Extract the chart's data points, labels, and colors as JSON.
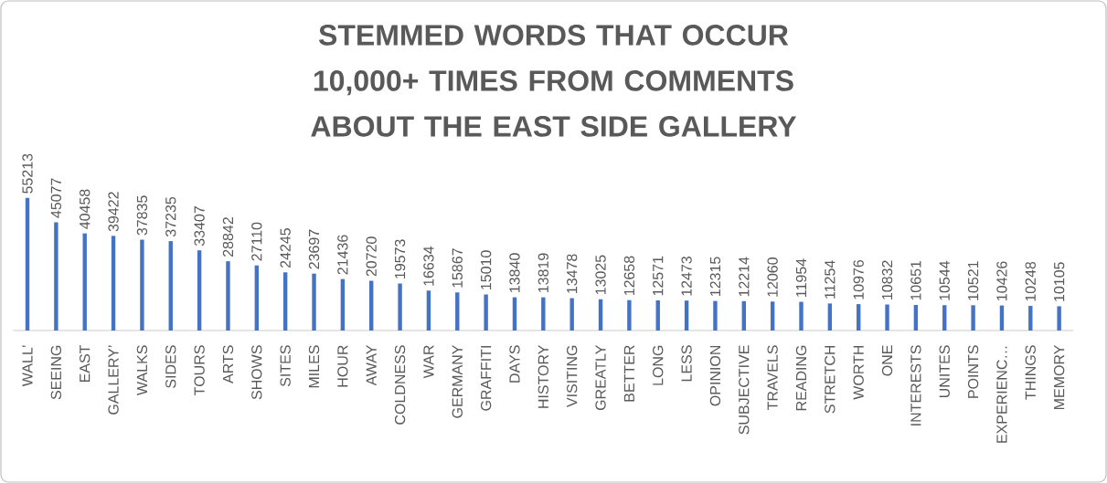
{
  "chart_data": {
    "type": "bar",
    "title": "STEMMED WORDS THAT OCCUR 10,000+ TIMES FROM COMMENTS ABOUT THE EAST SIDE GALLERY",
    "categories": [
      "WALL’",
      "SEEING",
      "EAST",
      "GALLERY’",
      "WALKS",
      "SIDES",
      "TOURS",
      "ARTS",
      "SHOWS",
      "SITES",
      "MILES",
      "HOUR",
      "AWAY",
      "COLDNESS",
      "WAR",
      "GERMANY",
      "GRAFFITI",
      "DAYS",
      "HISTORY",
      "VISITING",
      "GREATLY",
      "BETTER",
      "LONG",
      "LESS",
      "OPINION",
      "SUBJECTIVE",
      "TRAVELS",
      "READING",
      "STRETCH",
      "WORTH",
      "ONE",
      "INTERESTS",
      "UNITES",
      "POINTS",
      "EXPERIENC…",
      "THINGS",
      "MEMORY"
    ],
    "values": [
      55213,
      45077,
      40458,
      39422,
      37835,
      37235,
      33407,
      28842,
      27110,
      24245,
      23697,
      21436,
      20720,
      19573,
      16634,
      15867,
      15010,
      13840,
      13819,
      13478,
      13025,
      12658,
      12571,
      12473,
      12315,
      12214,
      12060,
      11954,
      11254,
      10976,
      10832,
      10651,
      10544,
      10521,
      10426,
      10248,
      10105
    ],
    "color": "#4472c4",
    "data_labels": true
  }
}
